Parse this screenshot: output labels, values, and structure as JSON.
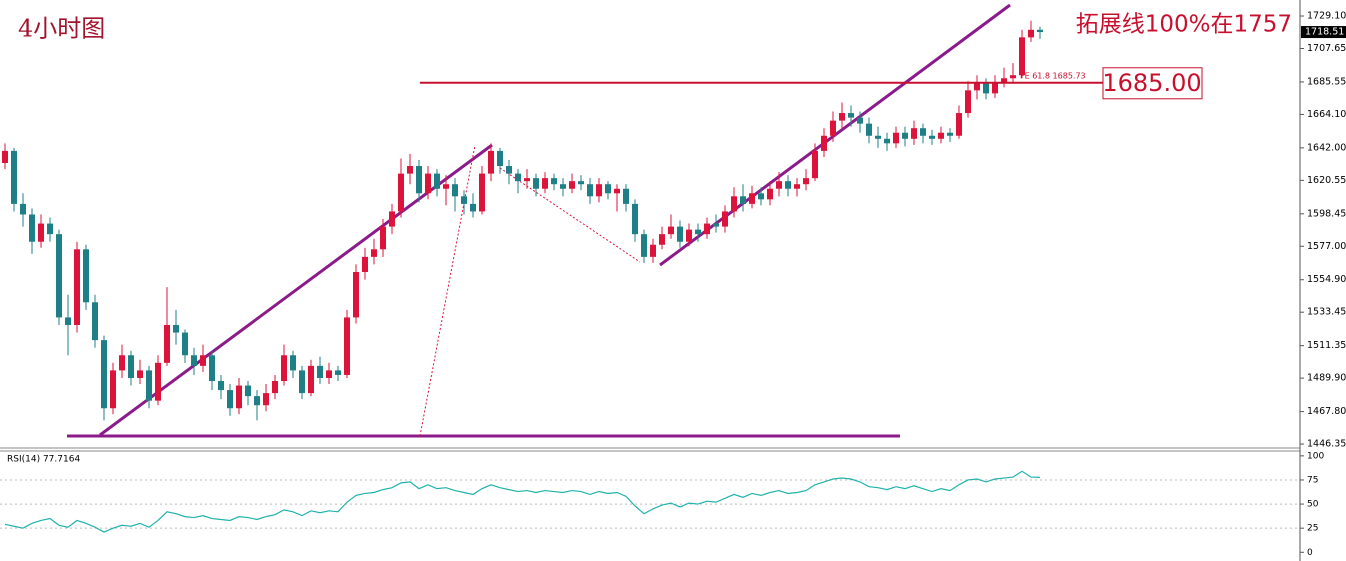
{
  "chart_data": [
    {
      "type": "candlestick",
      "title": "4小时图",
      "annotation": "拓展线100%在1757",
      "fe_label": "FE 61.8  1685.73",
      "level": {
        "value": 1685,
        "label": "1685.00"
      },
      "up_color": "#dc143c",
      "down_color": "#1f7f86",
      "ylim": [
        1444.4,
        1737.7
      ],
      "yticks": [
        {
          "value": 1729.1,
          "label": "1729.10"
        },
        1707.65,
        1685.55,
        {
          "value": 1664.1,
          "label": "1664.10"
        },
        {
          "value": 1642,
          "label": "1642.00"
        },
        1620.55,
        1598.45,
        {
          "value": 1577,
          "label": "1577.00"
        },
        {
          "value": 1554.9,
          "label": "1554.90"
        },
        1533.45,
        1511.35,
        {
          "value": 1489.9,
          "label": "1489.90"
        },
        {
          "value": 1467.8,
          "label": "1467.80"
        },
        1446.35
      ],
      "open": [
        1632,
        1640,
        1605,
        1598,
        1580,
        1592,
        1585,
        1530,
        1525,
        1575,
        1540,
        1515,
        1470,
        1495,
        1505,
        1490,
        1495,
        1475,
        1500,
        1525,
        1520,
        1505,
        1498,
        1505,
        1488,
        1482,
        1470,
        1485,
        1478,
        1472,
        1480,
        1488,
        1505,
        1495,
        1480,
        1498,
        1490,
        1495,
        1492,
        1530,
        1560,
        1570,
        1575,
        1590,
        1600,
        1625,
        1630,
        1612,
        1625,
        1615,
        1618,
        1610,
        1605,
        1600,
        1625,
        1640,
        1630,
        1625,
        1620,
        1622,
        1615,
        1622,
        1618,
        1615,
        1620,
        1618,
        1610,
        1618,
        1612,
        1615,
        1605,
        1585,
        1570,
        1578,
        1585,
        1590,
        1580,
        1588,
        1585,
        1592,
        1590,
        1600,
        1610,
        1605,
        1612,
        1608,
        1615,
        1620,
        1615,
        1618,
        1622,
        1640,
        1650,
        1660,
        1665,
        1662,
        1658,
        1650,
        1648,
        1645,
        1652,
        1648,
        1655,
        1650,
        1648,
        1652,
        1650,
        1665,
        1680,
        1685,
        1678,
        1685,
        1688,
        1690,
        1715,
        1720
      ],
      "high": [
        1645,
        1642,
        1612,
        1602,
        1598,
        1596,
        1588,
        1545,
        1580,
        1578,
        1545,
        1518,
        1500,
        1512,
        1508,
        1502,
        1498,
        1505,
        1550,
        1535,
        1522,
        1510,
        1512,
        1508,
        1492,
        1486,
        1490,
        1488,
        1482,
        1486,
        1492,
        1512,
        1508,
        1498,
        1502,
        1504,
        1500,
        1498,
        1535,
        1565,
        1576,
        1582,
        1595,
        1605,
        1635,
        1638,
        1634,
        1630,
        1628,
        1624,
        1622,
        1614,
        1612,
        1630,
        1645,
        1642,
        1634,
        1628,
        1628,
        1625,
        1626,
        1625,
        1622,
        1625,
        1624,
        1622,
        1622,
        1620,
        1618,
        1618,
        1608,
        1588,
        1582,
        1590,
        1598,
        1594,
        1592,
        1592,
        1596,
        1598,
        1604,
        1616,
        1618,
        1617,
        1616,
        1620,
        1626,
        1624,
        1622,
        1628,
        1645,
        1655,
        1666,
        1672,
        1670,
        1666,
        1662,
        1656,
        1652,
        1656,
        1656,
        1660,
        1658,
        1654,
        1656,
        1655,
        1670,
        1686,
        1690,
        1688,
        1690,
        1695,
        1698,
        1720,
        1726,
        1722
      ],
      "low": [
        1628,
        1600,
        1590,
        1572,
        1576,
        1580,
        1525,
        1505,
        1520,
        1535,
        1510,
        1462,
        1466,
        1490,
        1485,
        1486,
        1470,
        1472,
        1498,
        1512,
        1500,
        1492,
        1494,
        1482,
        1476,
        1465,
        1466,
        1472,
        1462,
        1468,
        1476,
        1485,
        1490,
        1476,
        1478,
        1486,
        1486,
        1488,
        1490,
        1526,
        1555,
        1565,
        1570,
        1585,
        1596,
        1618,
        1606,
        1608,
        1610,
        1604,
        1600,
        1598,
        1596,
        1598,
        1620,
        1625,
        1618,
        1612,
        1615,
        1610,
        1612,
        1614,
        1610,
        1612,
        1614,
        1605,
        1606,
        1608,
        1600,
        1600,
        1580,
        1566,
        1566,
        1575,
        1582,
        1576,
        1577,
        1580,
        1582,
        1586,
        1586,
        1596,
        1600,
        1602,
        1604,
        1604,
        1610,
        1610,
        1610,
        1614,
        1620,
        1636,
        1646,
        1655,
        1656,
        1652,
        1645,
        1642,
        1640,
        1642,
        1643,
        1644,
        1645,
        1644,
        1645,
        1646,
        1648,
        1662,
        1674,
        1674,
        1675,
        1682,
        1685,
        1688,
        1712,
        1714
      ],
      "close": [
        1640,
        1605,
        1598,
        1580,
        1592,
        1585,
        1530,
        1525,
        1575,
        1540,
        1515,
        1470,
        1495,
        1505,
        1490,
        1495,
        1475,
        1500,
        1525,
        1520,
        1505,
        1498,
        1505,
        1488,
        1482,
        1470,
        1485,
        1478,
        1472,
        1480,
        1488,
        1505,
        1495,
        1480,
        1498,
        1490,
        1495,
        1492,
        1530,
        1560,
        1570,
        1575,
        1590,
        1600,
        1625,
        1630,
        1612,
        1625,
        1615,
        1618,
        1610,
        1605,
        1600,
        1625,
        1640,
        1630,
        1625,
        1620,
        1622,
        1615,
        1622,
        1618,
        1615,
        1620,
        1618,
        1610,
        1618,
        1612,
        1615,
        1605,
        1585,
        1570,
        1578,
        1585,
        1590,
        1580,
        1588,
        1585,
        1592,
        1590,
        1600,
        1610,
        1605,
        1612,
        1608,
        1615,
        1620,
        1615,
        1618,
        1622,
        1640,
        1650,
        1660,
        1665,
        1662,
        1658,
        1650,
        1648,
        1645,
        1652,
        1648,
        1655,
        1650,
        1648,
        1652,
        1650,
        1665,
        1680,
        1685,
        1678,
        1685,
        1688,
        1690,
        1715,
        1720,
        1718.51
      ]
    },
    {
      "type": "line",
      "title": "RSI(14) 77.7164",
      "color": "#20b2aa",
      "ylim": [
        -8,
        104
      ],
      "yticks": [
        0,
        25,
        50,
        75,
        100
      ],
      "values": [
        29,
        27,
        25,
        30,
        33,
        35,
        28,
        26,
        33,
        30,
        26,
        21,
        25,
        28,
        27,
        30,
        26,
        33,
        42,
        40,
        37,
        36,
        38,
        35,
        34,
        33,
        37,
        36,
        34,
        37,
        39,
        44,
        42,
        38,
        43,
        41,
        43,
        42,
        52,
        59,
        61,
        62,
        65,
        67,
        72,
        73,
        66,
        70,
        66,
        67,
        64,
        62,
        60,
        66,
        70,
        67,
        65,
        63,
        64,
        62,
        64,
        63,
        62,
        64,
        63,
        60,
        63,
        61,
        62,
        58,
        48,
        40,
        45,
        49,
        51,
        47,
        51,
        50,
        53,
        52,
        56,
        60,
        57,
        61,
        59,
        62,
        64,
        61,
        62,
        64,
        70,
        73,
        76,
        77,
        76,
        73,
        68,
        67,
        65,
        68,
        66,
        69,
        66,
        63,
        66,
        64,
        70,
        75,
        76,
        73,
        76,
        77,
        78,
        84,
        78,
        77.7164
      ]
    }
  ]
}
